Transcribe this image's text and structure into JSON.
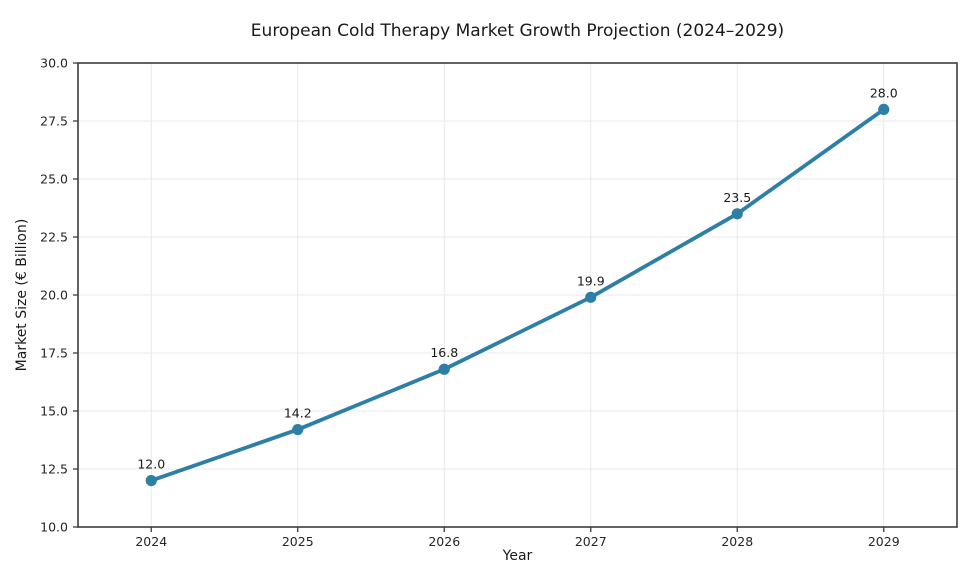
{
  "chart_data": {
    "type": "line",
    "title": "European Cold Therapy Market Growth Projection (2024–2029)",
    "xlabel": "Year",
    "ylabel": "Market Size (€ Billion)",
    "categories": [
      "2024",
      "2025",
      "2026",
      "2027",
      "2028",
      "2029"
    ],
    "series": [
      {
        "name": "Market Size",
        "values": [
          12.0,
          14.2,
          16.8,
          19.9,
          23.5,
          28.0
        ],
        "point_labels": [
          "12.0",
          "14.2",
          "16.8",
          "19.9",
          "23.5",
          "28.0"
        ]
      }
    ],
    "ylim": [
      10.0,
      30.0
    ],
    "yticks": [
      10.0,
      12.5,
      15.0,
      17.5,
      20.0,
      22.5,
      25.0,
      27.5,
      30.0
    ],
    "ytick_labels": [
      "10.0",
      "12.5",
      "15.0",
      "17.5",
      "20.0",
      "22.5",
      "25.0",
      "27.5",
      "30.0"
    ],
    "grid": true,
    "legend": "none",
    "colors": {
      "line": "#2d7fa6",
      "marker": "#2d7fa6",
      "grid": "#e8e8e8",
      "spine": "#3d3d3d",
      "text": "#1a1a1a",
      "tick_text": "#262626"
    }
  }
}
